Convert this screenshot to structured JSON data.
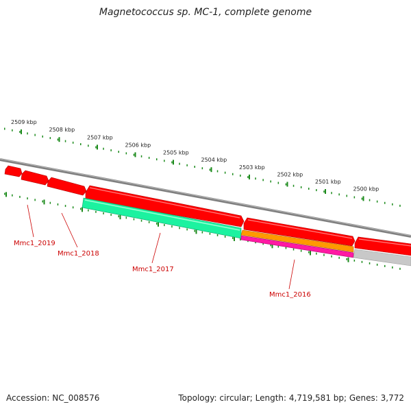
{
  "title": "Magnetococcus sp. MC-1, complete genome",
  "accession_text": "Accession: NC_008576",
  "summary_text": "Topology: circular; Length: 4,719,581 bp; Genes: 3,772",
  "colors": {
    "backbone": "#7f7f7f",
    "gene_forward": "#ff0000",
    "gene_green": "#1cf2a0",
    "gene_orange": "#ff9900",
    "gene_magenta": "#ff1aa3",
    "gene_grey": "#c8c8c8",
    "tick": "#1a8a1a",
    "label": "#cc0000"
  },
  "kbp_ticks": [
    "2509 kbp",
    "2508 kbp",
    "2507 kbp",
    "2506 kbp",
    "2505 kbp",
    "2504 kbp",
    "2503 kbp",
    "2502 kbp",
    "2501 kbp",
    "2500 kbp"
  ],
  "gene_labels": [
    "Mmc1_2019",
    "Mmc1_2018",
    "Mmc1_2017",
    "Mmc1_2016"
  ]
}
